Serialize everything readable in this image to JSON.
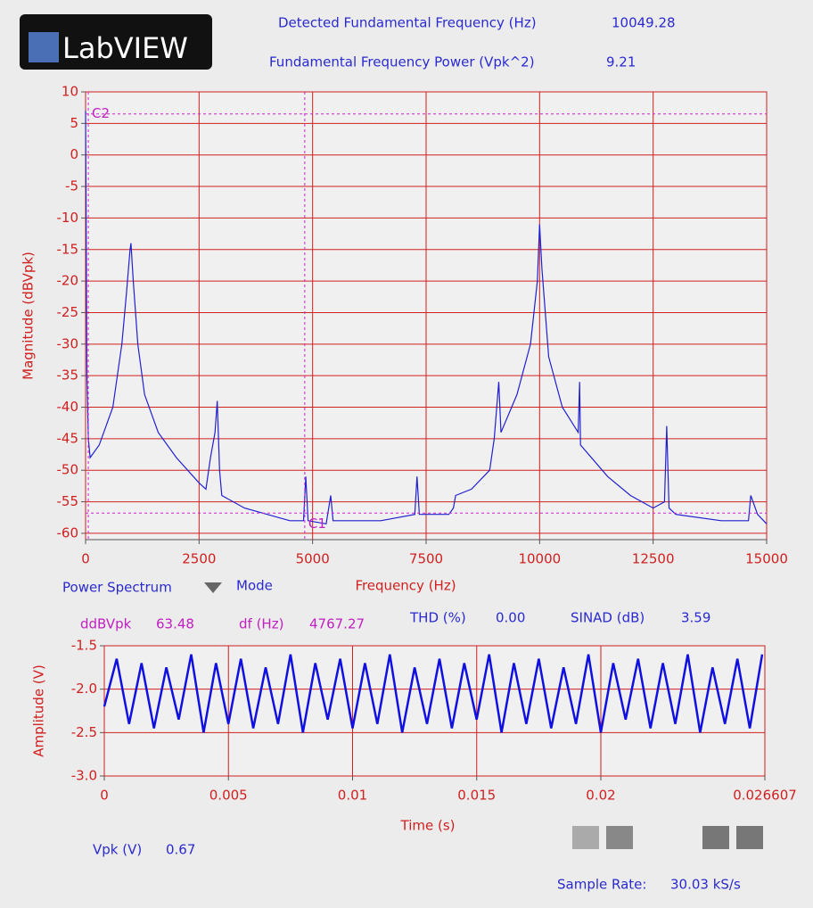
{
  "header": {
    "logo": "LabVIEW",
    "indicators": [
      {
        "label": "Detected Fundamental Frequency (Hz)",
        "value": "10049.28"
      },
      {
        "label": "Fundamental Frequency Power (Vpk^2)",
        "value": "9.21"
      }
    ]
  },
  "controls": {
    "mode_value": "Power Spectrum",
    "mode_label": "Mode"
  },
  "measurements": [
    {
      "label": "ddBVpk",
      "value": "63.48"
    },
    {
      "label": "df (Hz)",
      "value": "4767.27"
    },
    {
      "label": "THD (%)",
      "value": "0.00"
    },
    {
      "label": "SINAD (dB)",
      "value": "3.59"
    },
    {
      "label": "Vpk (V)",
      "value": "0.67"
    },
    {
      "label": "Sample Rate:",
      "value": "30.03 kS/s"
    }
  ],
  "chart_data": [
    {
      "type": "line",
      "y_label": "Magnitude (dBVpk)",
      "x_label": "Frequency (Hz)",
      "x": [
        0,
        30,
        60,
        100,
        300,
        600,
        800,
        900,
        980,
        1000,
        1050,
        1150,
        1300,
        1600,
        2000,
        2500,
        2650,
        2750,
        2850,
        2900,
        2950,
        3000,
        3500,
        4000,
        4500,
        4800,
        4850,
        4900,
        5300,
        5400,
        5450,
        6500,
        7250,
        7300,
        7350,
        8000,
        8100,
        8150,
        8500,
        8900,
        9000,
        9100,
        9150,
        9500,
        9800,
        9950,
        10000,
        10050,
        10200,
        10500,
        10850,
        10880,
        10900,
        11500,
        12000,
        12500,
        12750,
        12800,
        12850,
        13000,
        14000,
        14600,
        14650,
        14800,
        15000
      ],
      "series": [
        {
          "color": "#2020d0",
          "values": [
            7,
            -35,
            -45,
            -48,
            -46,
            -40,
            -30,
            -22,
            -15,
            -14,
            -20,
            -30,
            -38,
            -44,
            -48,
            -52,
            -53,
            -48,
            -44,
            -39,
            -50,
            -54,
            -56,
            -57,
            -58,
            -58,
            -51,
            -58,
            -58.5,
            -54,
            -58,
            -58,
            -57,
            -51,
            -57,
            -57,
            -56,
            -54,
            -53,
            -50,
            -45,
            -36,
            -44,
            -38,
            -30,
            -20,
            -11,
            -18,
            -32,
            -40,
            -44,
            -36,
            -46,
            -51,
            -54,
            -56,
            -55,
            -43,
            -56,
            -57,
            -58,
            -58,
            -54,
            -57,
            -58.5
          ]
        }
      ],
      "xlim": [
        0,
        15000
      ],
      "ylim": [
        -61,
        10
      ],
      "xticks": [
        0,
        2500,
        5000,
        7500,
        10000,
        12500,
        15000
      ],
      "yticks": [
        10,
        5,
        0,
        -5,
        -10,
        -15,
        -20,
        -25,
        -30,
        -35,
        -40,
        -45,
        -50,
        -55,
        -60
      ],
      "grid": true,
      "grid_color": "#d02020",
      "cursors": [
        {
          "name": "C2",
          "x": 60,
          "y": 6.5
        },
        {
          "name": "C1",
          "x": 4827,
          "y": -56.8
        }
      ]
    },
    {
      "type": "line",
      "y_label": "Amplitude (V)",
      "x_label": "Time (s)",
      "x": [
        0,
        0.0005,
        0.001,
        0.0015,
        0.002,
        0.0025,
        0.003,
        0.0035,
        0.004,
        0.0045,
        0.005,
        0.0055,
        0.006,
        0.0065,
        0.007,
        0.0075,
        0.008,
        0.0085,
        0.009,
        0.0095,
        0.01,
        0.0105,
        0.011,
        0.0115,
        0.012,
        0.0125,
        0.013,
        0.0135,
        0.014,
        0.0145,
        0.015,
        0.0155,
        0.016,
        0.0165,
        0.017,
        0.0175,
        0.018,
        0.0185,
        0.019,
        0.0195,
        0.02,
        0.0205,
        0.021,
        0.0215,
        0.022,
        0.0225,
        0.023,
        0.0235,
        0.024,
        0.0245,
        0.025,
        0.0255,
        0.026,
        0.0265
      ],
      "series": [
        {
          "color": "#1010e0",
          "values": [
            -2.2,
            -1.65,
            -2.4,
            -1.7,
            -2.45,
            -1.75,
            -2.35,
            -1.6,
            -2.5,
            -1.7,
            -2.4,
            -1.65,
            -2.45,
            -1.75,
            -2.4,
            -1.6,
            -2.5,
            -1.7,
            -2.35,
            -1.65,
            -2.45,
            -1.7,
            -2.4,
            -1.6,
            -2.5,
            -1.75,
            -2.4,
            -1.65,
            -2.45,
            -1.7,
            -2.35,
            -1.6,
            -2.5,
            -1.7,
            -2.4,
            -1.65,
            -2.45,
            -1.75,
            -2.4,
            -1.6,
            -2.5,
            -1.7,
            -2.35,
            -1.65,
            -2.45,
            -1.7,
            -2.4,
            -1.6,
            -2.5,
            -1.75,
            -2.4,
            -1.65,
            -2.45,
            -1.6
          ]
        }
      ],
      "xlim": [
        0,
        0.026607
      ],
      "ylim": [
        -3.0,
        -1.5
      ],
      "xticks": [
        0,
        0.005,
        0.01,
        0.015,
        0.02,
        0.026607
      ],
      "yticks": [
        -1.5,
        {
          "value": -2,
          "label": "-2.0"
        },
        -2.5,
        {
          "value": -3,
          "label": "-3.0"
        }
      ],
      "grid": true,
      "grid_color": "#d02020"
    }
  ]
}
